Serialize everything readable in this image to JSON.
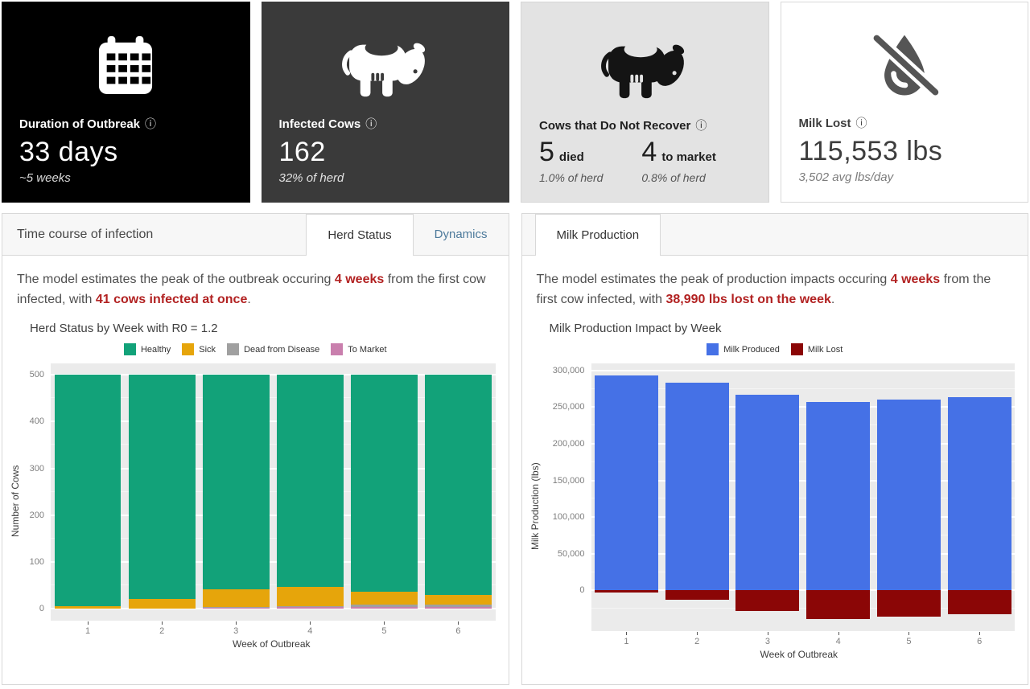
{
  "info_icon": "ⓘ",
  "cards": [
    {
      "label": "Duration of Outbreak",
      "value": "33 days",
      "sub": "~5 weeks"
    },
    {
      "label": "Infected Cows",
      "value": "162",
      "sub": "32% of herd"
    },
    {
      "label": "Cows that Do Not Recover",
      "stats": [
        {
          "value": "5",
          "unit": "died",
          "sub": "1.0% of herd"
        },
        {
          "value": "4",
          "unit": "to market",
          "sub": "0.8% of herd"
        }
      ]
    },
    {
      "label": "Milk Lost",
      "value": "115,553 lbs",
      "sub": "3,502 avg lbs/day"
    }
  ],
  "left_panel": {
    "title": "Time course of infection",
    "tabs": [
      {
        "label": "Herd Status"
      },
      {
        "label": "Dynamics"
      }
    ],
    "description_parts": [
      {
        "text": "The model estimates the peak of the outbreak occuring "
      },
      {
        "text": "4 weeks",
        "em": true
      },
      {
        "text": " from the first cow infected, with "
      },
      {
        "text": "41 cows infected at once",
        "em": true
      },
      {
        "text": "."
      }
    ]
  },
  "right_panel": {
    "tabs": [
      {
        "label": "Milk Production"
      }
    ],
    "description_parts": [
      {
        "text": "The model estimates the peak of production impacts occuring "
      },
      {
        "text": "4 weeks",
        "em": true
      },
      {
        "text": " from the first cow infected, with "
      },
      {
        "text": "38,990 lbs lost on the week",
        "em": true
      },
      {
        "text": "."
      }
    ]
  },
  "chart_data": [
    {
      "type": "bar",
      "stacked": true,
      "title": "Herd Status by Week with R0 = 1.2",
      "xlabel": "Week of Outbreak",
      "ylabel": "Number of Cows",
      "categories": [
        "1",
        "2",
        "3",
        "4",
        "5",
        "6"
      ],
      "ylim": [
        -25,
        525
      ],
      "yticks": [
        0,
        100,
        200,
        300,
        400,
        500
      ],
      "tick_format": "plain",
      "grid": true,
      "legend_position": "top",
      "legend": [
        {
          "label": "Healthy",
          "color": "#12A279"
        },
        {
          "label": "Sick",
          "color": "#E6A50B"
        },
        {
          "label": "Dead from Disease",
          "color": "#A0A0A0"
        },
        {
          "label": "To Market",
          "color": "#C97FAD"
        }
      ],
      "series": [
        {
          "name": "To Market",
          "color": "#C97FAD",
          "values": [
            0,
            0,
            2,
            4,
            4,
            4
          ]
        },
        {
          "name": "Dead from Disease",
          "color": "#A0A0A0",
          "values": [
            0,
            0,
            1,
            2,
            4,
            5
          ]
        },
        {
          "name": "Sick",
          "color": "#E6A50B",
          "values": [
            5,
            20,
            38,
            41,
            28,
            20
          ]
        },
        {
          "name": "Healthy",
          "color": "#12A279",
          "values": [
            495,
            480,
            459,
            453,
            464,
            471
          ]
        }
      ]
    },
    {
      "type": "bar",
      "stacked": true,
      "title": "Milk Production Impact by Week",
      "xlabel": "Week of Outbreak",
      "ylabel": "Milk Production (lbs)",
      "categories": [
        "1",
        "2",
        "3",
        "4",
        "5",
        "6"
      ],
      "ylim": [
        -55000,
        310000
      ],
      "yticks": [
        0,
        50000,
        100000,
        150000,
        200000,
        250000,
        300000
      ],
      "tick_format": "comma",
      "grid": true,
      "legend_position": "top",
      "legend": [
        {
          "label": "Milk Produced",
          "color": "#4571E6"
        },
        {
          "label": "Milk Lost",
          "color": "#8B0606"
        }
      ],
      "series": [
        {
          "name": "Milk Produced",
          "color": "#4571E6",
          "values": [
            293000,
            283000,
            267000,
            257000,
            260000,
            264000
          ]
        },
        {
          "name": "Milk Lost",
          "color": "#8B0606",
          "values": [
            -3000,
            -13000,
            -28000,
            -38990,
            -36000,
            -32000
          ]
        }
      ]
    }
  ],
  "colors": {
    "accent_red": "#b22222",
    "tab_link": "#4d7a9b",
    "panel_bg": "#ebebeb"
  }
}
